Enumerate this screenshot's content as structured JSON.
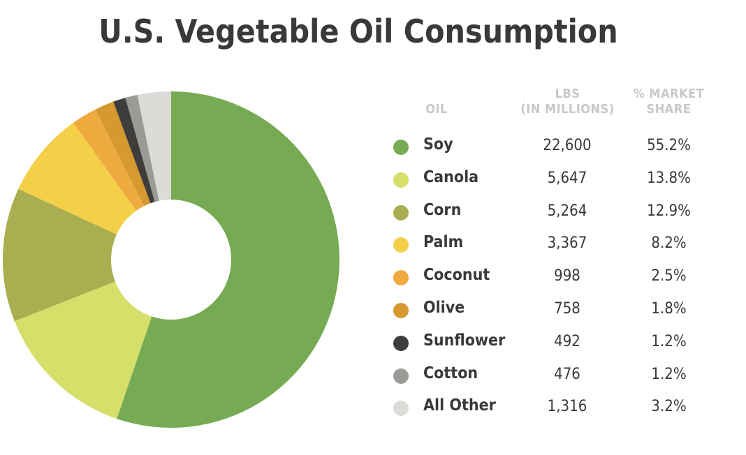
{
  "title": "U.S. Vegetable Oil Consumption",
  "table_headers": {
    "oil": "OIL",
    "lbs_line1": "LBS",
    "lbs_line2": "(IN MILLIONS)",
    "share_line1": "% MARKET",
    "share_line2": "SHARE"
  },
  "chart_data": {
    "type": "pie",
    "style": "donut",
    "categories": [
      "Soy",
      "Canola",
      "Corn",
      "Palm",
      "Coconut",
      "Olive",
      "Sunflower",
      "Cotton",
      "All Other"
    ],
    "values": [
      22600,
      5647,
      5264,
      3367,
      998,
      758,
      492,
      476,
      1316
    ],
    "values_unit": "LBS (IN MILLIONS)",
    "values_display": [
      "22,600",
      "5,647",
      "5,264",
      "3,367",
      "998",
      "758",
      "492",
      "476",
      "1,316"
    ],
    "shares_display": [
      "55.2%",
      "13.8%",
      "12.9%",
      "8.2%",
      "2.5%",
      "1.8%",
      "1.2%",
      "1.2%",
      "3.2%"
    ],
    "colors": [
      "#76ab53",
      "#d6df6a",
      "#a9ae50",
      "#f4cf48",
      "#efab40",
      "#d5992f",
      "#3e3d3b",
      "#9c9a97",
      "#dddbd8"
    ],
    "start": "12 o'clock",
    "direction": "clockwise"
  }
}
